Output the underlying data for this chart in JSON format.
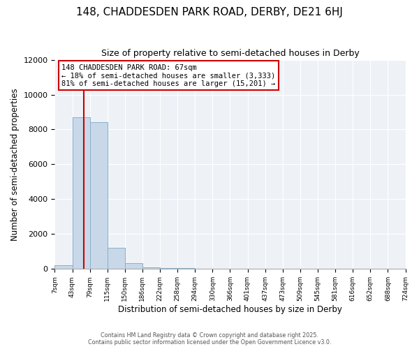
{
  "title": "148, CHADDESDEN PARK ROAD, DERBY, DE21 6HJ",
  "subtitle": "Size of property relative to semi-detached houses in Derby",
  "xlabel": "Distribution of semi-detached houses by size in Derby",
  "ylabel": "Number of semi-detached properties",
  "bin_labels": [
    "7sqm",
    "43sqm",
    "79sqm",
    "115sqm",
    "150sqm",
    "186sqm",
    "222sqm",
    "258sqm",
    "294sqm",
    "330sqm",
    "366sqm",
    "401sqm",
    "437sqm",
    "473sqm",
    "509sqm",
    "545sqm",
    "581sqm",
    "616sqm",
    "652sqm",
    "688sqm",
    "724sqm"
  ],
  "bar_values": [
    200,
    8700,
    8400,
    1200,
    330,
    100,
    50,
    50,
    0,
    0,
    0,
    0,
    0,
    0,
    0,
    0,
    0,
    0,
    0,
    0
  ],
  "bar_color": "#c8d8e8",
  "bar_edge_color": "#8ab0cc",
  "property_sqm": 67,
  "pct_smaller": 18,
  "pct_larger": 81,
  "n_smaller": 3333,
  "n_larger": 15201,
  "annotation_text": "148 CHADDESDEN PARK ROAD: 67sqm\n← 18% of semi-detached houses are smaller (3,333)\n81% of semi-detached houses are larger (15,201) →",
  "ylim": [
    0,
    12000
  ],
  "yticks": [
    0,
    2000,
    4000,
    6000,
    8000,
    10000,
    12000
  ],
  "red_line_color": "#cc0000",
  "grid_color": "#d0dce8",
  "footer_line1": "Contains HM Land Registry data © Crown copyright and database right 2025.",
  "footer_line2": "Contains public sector information licensed under the Open Government Licence v3.0."
}
